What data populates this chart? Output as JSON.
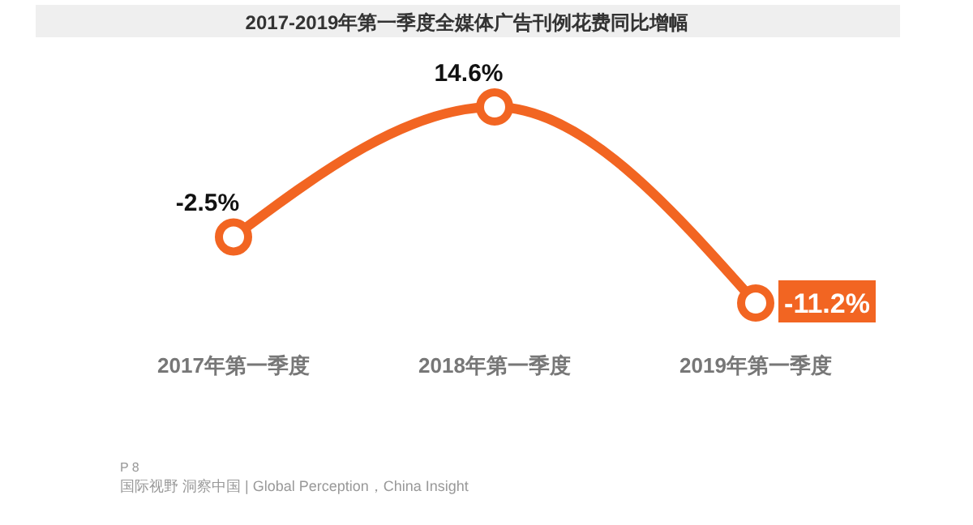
{
  "chart_data": {
    "type": "line",
    "title": "2017-2019年第一季度全媒体广告刊例花费同比增幅",
    "categories": [
      "2017年第一季度",
      "2018年第一季度",
      "2019年第一季度"
    ],
    "values": [
      -2.5,
      14.6,
      -11.2
    ],
    "value_labels": [
      "-2.5%",
      "14.6%",
      "-11.2%"
    ],
    "color": "#f26522",
    "marker": "circle",
    "grid": false,
    "legend": false,
    "annotations": [
      "P 8",
      "国际视野  洞察中国 | Global Perception，China Insight"
    ]
  }
}
